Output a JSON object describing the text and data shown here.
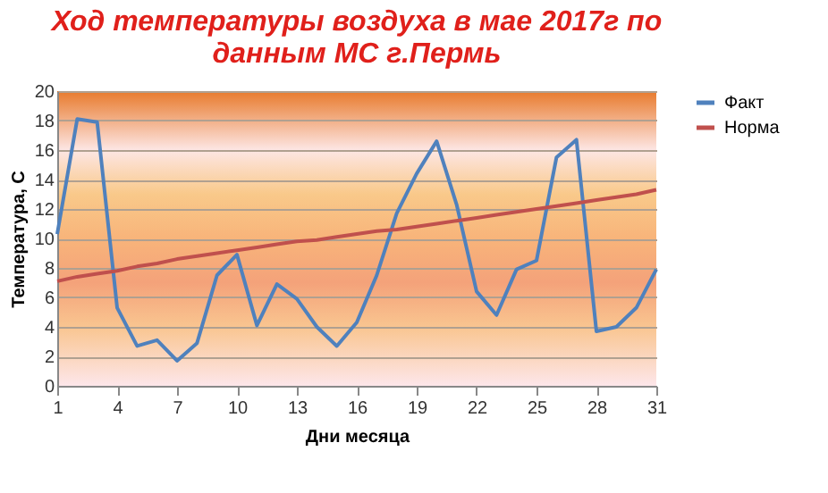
{
  "chart_data": {
    "type": "line",
    "title": [
      "Ход температуры воздуха в мае 2017г по",
      "данным МС г.Пермь"
    ],
    "xlabel": "Дни месяца",
    "ylabel": "Температура, С",
    "x": [
      1,
      2,
      3,
      4,
      5,
      6,
      7,
      8,
      9,
      10,
      11,
      12,
      13,
      14,
      15,
      16,
      17,
      18,
      19,
      20,
      21,
      22,
      23,
      24,
      25,
      26,
      27,
      28,
      29,
      30,
      31
    ],
    "series": [
      {
        "name": "Факт",
        "color": "#4f81bd",
        "values": [
          10.3,
          18.1,
          17.9,
          5.3,
          2.7,
          3.1,
          1.7,
          2.9,
          7.5,
          8.9,
          4.1,
          6.9,
          5.9,
          4.0,
          2.7,
          4.3,
          7.5,
          11.7,
          14.4,
          16.6,
          12.3,
          6.4,
          4.8,
          7.9,
          8.5,
          15.5,
          16.7,
          3.7,
          4.0,
          5.3,
          7.9
        ]
      },
      {
        "name": "Норма",
        "color": "#c0504d",
        "values": [
          7.1,
          7.4,
          7.6,
          7.8,
          8.1,
          8.3,
          8.6,
          8.8,
          9.0,
          9.2,
          9.4,
          9.6,
          9.8,
          9.9,
          10.1,
          10.3,
          10.5,
          10.6,
          10.8,
          11.0,
          11.2,
          11.4,
          11.6,
          11.8,
          12.0,
          12.2,
          12.4,
          12.6,
          12.8,
          13.0,
          13.3
        ]
      }
    ],
    "xlim": [
      1,
      31
    ],
    "xticks": [
      1,
      4,
      7,
      10,
      13,
      16,
      19,
      22,
      25,
      28,
      31
    ],
    "ylim": [
      0,
      20
    ],
    "yticks": [
      0,
      2,
      4,
      6,
      8,
      10,
      12,
      14,
      16,
      18,
      20
    ],
    "grid": "y",
    "legend": "right",
    "marker": "none",
    "line_style": "solid"
  }
}
